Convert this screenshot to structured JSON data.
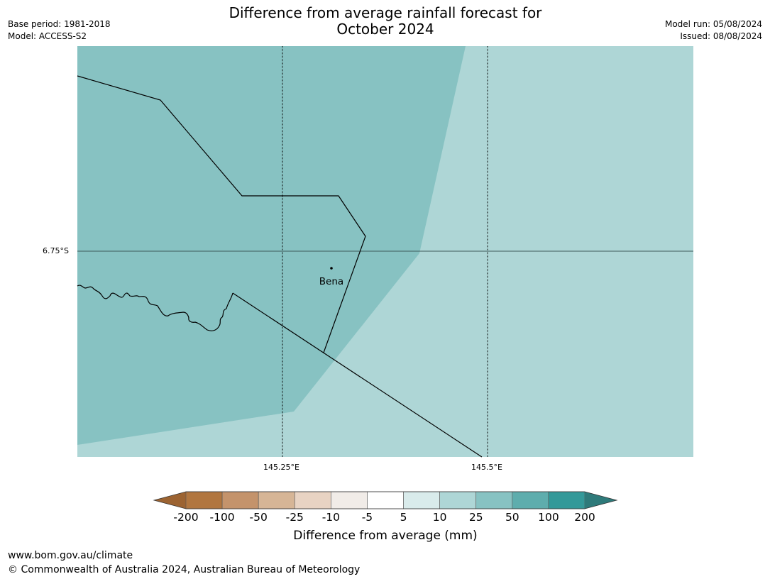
{
  "header": {
    "title_line1": "Difference from average rainfall forecast for",
    "title_line2": "October 2024",
    "base_period": "Base period: 1981-2018",
    "model": "Model: ACCESS-S2",
    "model_run": "Model run: 05/08/2024",
    "issued": "Issued: 08/08/2024"
  },
  "map": {
    "latitude_label": "6.75°S",
    "longitude_labels": [
      "145.25°E",
      "145.5°E"
    ],
    "place": "Bena",
    "colors": {
      "region_25_50": "#87c2c2",
      "region_10_25": "#aed6d6",
      "grid": "#000000"
    }
  },
  "colorbar": {
    "title": "Difference from average (mm)",
    "ticks": [
      "-200",
      "-100",
      "-50",
      "-25",
      "-10",
      "-5",
      "5",
      "10",
      "25",
      "50",
      "100",
      "200"
    ],
    "colors": [
      "#9c6331",
      "#b1763f",
      "#c4936b",
      "#d6b596",
      "#e8d3c3",
      "#f1ece8",
      "#ffffff",
      "#d9ebeb",
      "#aed6d6",
      "#87c2c2",
      "#5eadad",
      "#339999",
      "#2e7a7a"
    ]
  },
  "footer": {
    "url": "www.bom.gov.au/climate",
    "copyright": "© Commonwealth of Australia 2024, Australian Bureau of Meteorology"
  }
}
